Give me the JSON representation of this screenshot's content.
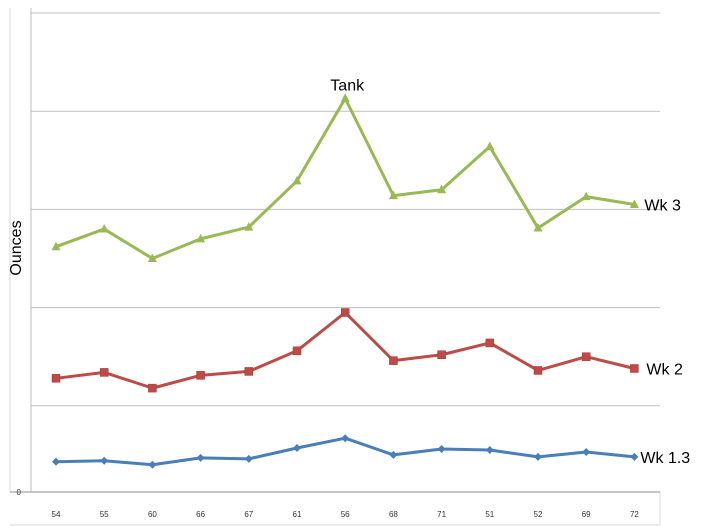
{
  "chart_data": {
    "type": "line",
    "ylabel": "Ounces",
    "categories": [
      "54",
      "55",
      "60",
      "66",
      "67",
      "61",
      "56",
      "68",
      "71",
      "51",
      "52",
      "69",
      "72"
    ],
    "yticks": [
      "0"
    ],
    "ylim": [
      0,
      5
    ],
    "grid": true,
    "annotation": {
      "text": "Tank",
      "category": "56",
      "series": "Wk 3"
    },
    "series": [
      {
        "name": "Wk 1.3",
        "marker": "diamond",
        "color": "#4a7ebb",
        "values": [
          0.43,
          0.44,
          0.4,
          0.47,
          0.46,
          0.57,
          0.67,
          0.5,
          0.56,
          0.55,
          0.48,
          0.53,
          0.48
        ]
      },
      {
        "name": "Wk 2",
        "marker": "square",
        "color": "#be4b48",
        "values": [
          1.28,
          1.34,
          1.18,
          1.31,
          1.35,
          1.56,
          1.95,
          1.46,
          1.52,
          1.64,
          1.36,
          1.5,
          1.38
        ]
      },
      {
        "name": "Wk 3",
        "marker": "triangle",
        "color": "#98b954",
        "values": [
          2.62,
          2.8,
          2.5,
          2.7,
          2.82,
          3.29,
          4.13,
          3.14,
          3.2,
          3.64,
          2.81,
          3.13,
          3.05
        ]
      }
    ]
  }
}
